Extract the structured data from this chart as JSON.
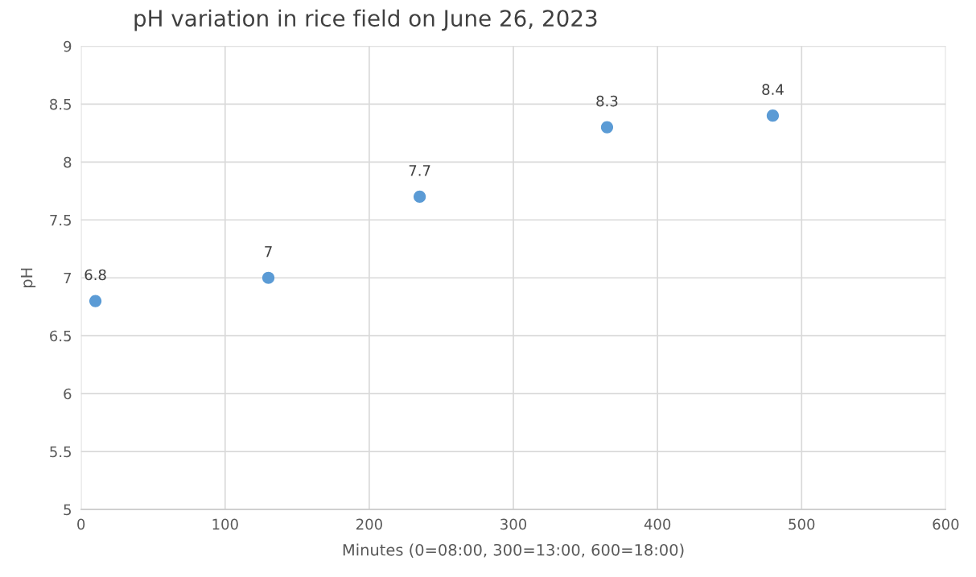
{
  "chart_data": {
    "type": "scatter",
    "title": "pH variation in rice field on June 26, 2023",
    "xlabel": "Minutes (0=08:00, 300=13:00, 600=18:00)",
    "ylabel": "pH",
    "x": [
      10,
      130,
      235,
      365,
      480
    ],
    "series": [
      {
        "color": "#5b9bd5",
        "values": [
          6.8,
          7,
          7.7,
          8.3,
          8.4
        ]
      }
    ],
    "xlim": [
      0,
      600
    ],
    "xticks": [
      0,
      100,
      200,
      300,
      400,
      500,
      600
    ],
    "ylim": [
      5,
      9
    ],
    "yticks": [
      5,
      {
        "value": 5.5,
        "label": "5.5"
      },
      6,
      {
        "value": 6.5,
        "label": "6.5"
      },
      7,
      {
        "value": 7.5,
        "label": "7.5"
      },
      8,
      {
        "value": 8.5,
        "label": "8.5"
      },
      9
    ],
    "grid": true,
    "marker": "circle",
    "data_labels": true,
    "legend": false
  }
}
